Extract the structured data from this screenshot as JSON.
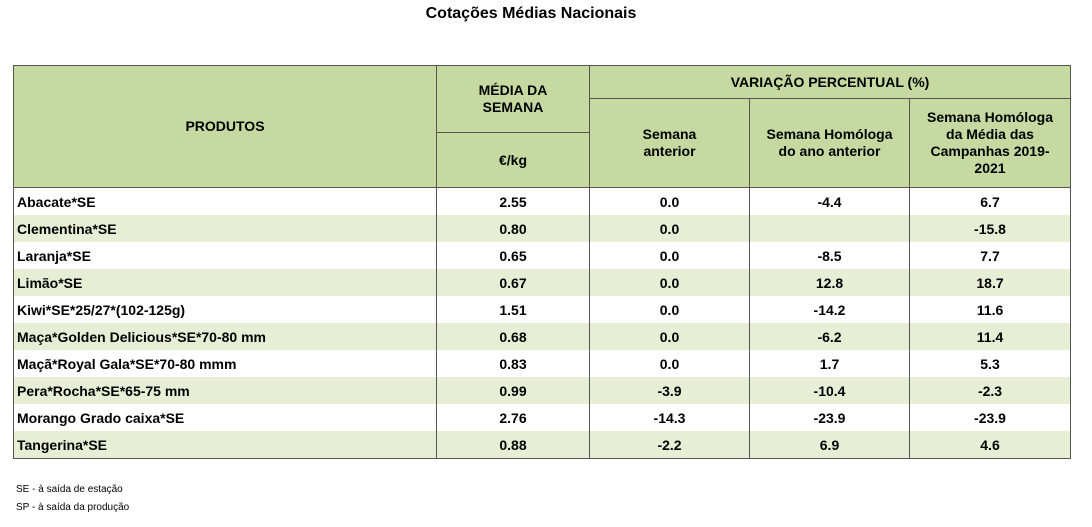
{
  "title": "Cotações Médias Nacionais",
  "headers": {
    "produtos": "PRODUTOS",
    "media_semana": "MÉDIA DA SEMANA",
    "unit": "€/kg",
    "variacao": "VARIAÇÃO PERCENTUAL (%)",
    "semana_anterior": "Semana anterior",
    "homologa_ano": "Semana Homóloga do ano anterior",
    "homologa_campanhas": "Semana Homóloga da Média das Campanhas 2019-2021"
  },
  "rows": [
    {
      "name": "Abacate*SE",
      "media": "2.55",
      "anterior": "0.0",
      "homologa": "-4.4",
      "campanhas": "6.7"
    },
    {
      "name": "Clementina*SE",
      "media": "0.80",
      "anterior": "0.0",
      "homologa": "",
      "campanhas": "-15.8"
    },
    {
      "name": "Laranja*SE",
      "media": "0.65",
      "anterior": "0.0",
      "homologa": "-8.5",
      "campanhas": "7.7"
    },
    {
      "name": "Limão*SE",
      "media": "0.67",
      "anterior": "0.0",
      "homologa": "12.8",
      "campanhas": "18.7"
    },
    {
      "name": "Kiwi*SE*25/27*(102-125g)",
      "media": "1.51",
      "anterior": "0.0",
      "homologa": "-14.2",
      "campanhas": "11.6"
    },
    {
      "name": "Maça*Golden Delicious*SE*70-80 mm",
      "media": "0.68",
      "anterior": "0.0",
      "homologa": "-6.2",
      "campanhas": "11.4"
    },
    {
      "name": "Maçã*Royal Gala*SE*70-80 mmm",
      "media": "0.83",
      "anterior": "0.0",
      "homologa": "1.7",
      "campanhas": "5.3"
    },
    {
      "name": "Pera*Rocha*SE*65-75 mm",
      "media": "0.99",
      "anterior": "-3.9",
      "homologa": "-10.4",
      "campanhas": "-2.3"
    },
    {
      "name": "Morango Grado caixa*SE",
      "media": "2.76",
      "anterior": "-14.3",
      "homologa": "-23.9",
      "campanhas": "-23.9"
    },
    {
      "name": "Tangerina*SE",
      "media": "0.88",
      "anterior": "-2.2",
      "homologa": "6.9",
      "campanhas": "4.6"
    }
  ],
  "footnotes": {
    "se": "SE - à saída de estação",
    "sp": "SP - à saída da produção"
  },
  "colors": {
    "header_green": "#c5d9a0",
    "row_green": "#e6efd6"
  }
}
